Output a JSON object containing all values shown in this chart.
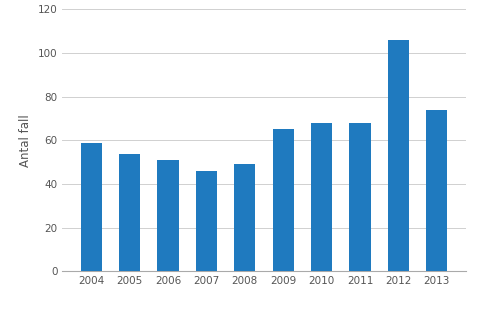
{
  "years": [
    "2004",
    "2005",
    "2006",
    "2007",
    "2008",
    "2009",
    "2010",
    "2011",
    "2012",
    "2013"
  ],
  "values": [
    59,
    54,
    51,
    46,
    49,
    65,
    68,
    68,
    106,
    74
  ],
  "bar_color": "#1f7abf",
  "ylabel": "Antal fall",
  "ylim": [
    0,
    120
  ],
  "yticks": [
    0,
    20,
    40,
    60,
    80,
    100,
    120
  ],
  "background_color": "#ffffff",
  "grid_color": "#d0d0d0",
  "bar_width": 0.55
}
